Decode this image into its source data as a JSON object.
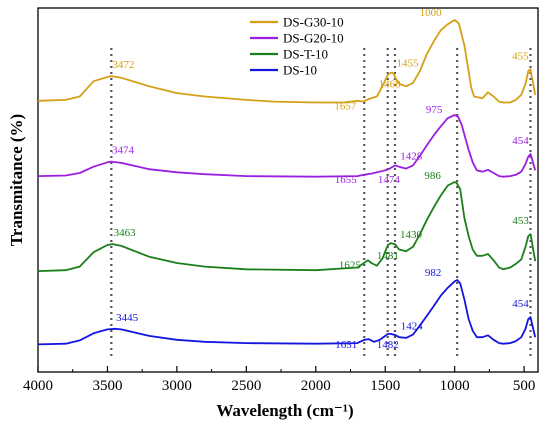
{
  "chart_data": {
    "type": "line",
    "title": "",
    "xlabel": "Wavelength (cm⁻¹)",
    "ylabel": "Transmitance (%)",
    "xlim": [
      4000,
      400
    ],
    "x_reversed": true,
    "x_ticks": [
      4000,
      3500,
      3000,
      2500,
      2000,
      1500,
      1000,
      500
    ],
    "y_ticks_shown": false,
    "legend": {
      "placement": "top-center"
    },
    "series": [
      {
        "name": "DS-G30-10",
        "color": "#d4a017",
        "points": [
          [
            4000,
            5
          ],
          [
            3800,
            6
          ],
          [
            3700,
            10
          ],
          [
            3600,
            28
          ],
          [
            3500,
            33
          ],
          [
            3472,
            34
          ],
          [
            3400,
            32
          ],
          [
            3300,
            27
          ],
          [
            3200,
            22
          ],
          [
            3000,
            14
          ],
          [
            2800,
            10
          ],
          [
            2500,
            6
          ],
          [
            2300,
            4
          ],
          [
            2000,
            3
          ],
          [
            1800,
            3
          ],
          [
            1700,
            5
          ],
          [
            1657,
            4
          ],
          [
            1620,
            7
          ],
          [
            1560,
            10
          ],
          [
            1520,
            22
          ],
          [
            1480,
            36
          ],
          [
            1455,
            38
          ],
          [
            1440,
            37
          ],
          [
            1420,
            30
          ],
          [
            1400,
            25
          ],
          [
            1350,
            22
          ],
          [
            1300,
            26
          ],
          [
            1250,
            40
          ],
          [
            1200,
            60
          ],
          [
            1150,
            75
          ],
          [
            1100,
            88
          ],
          [
            1050,
            95
          ],
          [
            1020,
            98
          ],
          [
            1000,
            100
          ],
          [
            970,
            96
          ],
          [
            930,
            70
          ],
          [
            900,
            40
          ],
          [
            880,
            20
          ],
          [
            860,
            10
          ],
          [
            800,
            8
          ],
          [
            760,
            15
          ],
          [
            720,
            10
          ],
          [
            680,
            4
          ],
          [
            650,
            3
          ],
          [
            600,
            3
          ],
          [
            560,
            6
          ],
          [
            520,
            12
          ],
          [
            490,
            25
          ],
          [
            470,
            40
          ],
          [
            455,
            42
          ],
          [
            440,
            30
          ],
          [
            420,
            12
          ]
        ],
        "peak_labels": [
          {
            "x": 3472,
            "label": "3472"
          },
          {
            "x": 1657,
            "label": "1657"
          },
          {
            "x": 1468,
            "label": "1468"
          },
          {
            "x": 1455,
            "label": "1455"
          },
          {
            "x": 1000,
            "label": "1000"
          },
          {
            "x": 455,
            "label": "455"
          }
        ]
      },
      {
        "name": "DS-G20-10",
        "color": "#9b1fe0",
        "points": [
          [
            4000,
            3
          ],
          [
            3800,
            4
          ],
          [
            3700,
            8
          ],
          [
            3600,
            18
          ],
          [
            3500,
            25
          ],
          [
            3474,
            26
          ],
          [
            3400,
            24
          ],
          [
            3300,
            19
          ],
          [
            3200,
            14
          ],
          [
            3000,
            9
          ],
          [
            2800,
            6
          ],
          [
            2500,
            3
          ],
          [
            2000,
            2
          ],
          [
            1700,
            3
          ],
          [
            1655,
            5
          ],
          [
            1600,
            7
          ],
          [
            1500,
            12
          ],
          [
            1474,
            14
          ],
          [
            1460,
            16
          ],
          [
            1428,
            20
          ],
          [
            1400,
            18
          ],
          [
            1350,
            15
          ],
          [
            1300,
            20
          ],
          [
            1250,
            35
          ],
          [
            1200,
            52
          ],
          [
            1150,
            68
          ],
          [
            1100,
            82
          ],
          [
            1050,
            95
          ],
          [
            1000,
            100
          ],
          [
            975,
            97
          ],
          [
            950,
            85
          ],
          [
            900,
            45
          ],
          [
            870,
            25
          ],
          [
            840,
            12
          ],
          [
            800,
            10
          ],
          [
            760,
            13
          ],
          [
            720,
            8
          ],
          [
            680,
            3
          ],
          [
            650,
            2
          ],
          [
            600,
            3
          ],
          [
            560,
            5
          ],
          [
            520,
            10
          ],
          [
            490,
            22
          ],
          [
            470,
            34
          ],
          [
            454,
            38
          ],
          [
            440,
            28
          ],
          [
            420,
            12
          ]
        ],
        "peak_labels": [
          {
            "x": 3474,
            "label": "3474"
          },
          {
            "x": 1655,
            "label": "1655"
          },
          {
            "x": 1474,
            "label": "1474"
          },
          {
            "x": 1428,
            "label": "1428"
          },
          {
            "x": 975,
            "label": "975"
          },
          {
            "x": 454,
            "label": "454"
          }
        ]
      },
      {
        "name": "DS-T-10",
        "color": "#1a7f1a",
        "points": [
          [
            4000,
            1
          ],
          [
            3800,
            2
          ],
          [
            3700,
            6
          ],
          [
            3600,
            22
          ],
          [
            3500,
            30
          ],
          [
            3463,
            31
          ],
          [
            3400,
            29
          ],
          [
            3300,
            23
          ],
          [
            3200,
            17
          ],
          [
            3000,
            10
          ],
          [
            2800,
            6
          ],
          [
            2500,
            3
          ],
          [
            2000,
            2
          ],
          [
            1700,
            5
          ],
          [
            1625,
            13
          ],
          [
            1600,
            10
          ],
          [
            1560,
            7
          ],
          [
            1520,
            15
          ],
          [
            1481,
            30
          ],
          [
            1460,
            32
          ],
          [
            1430,
            31
          ],
          [
            1400,
            25
          ],
          [
            1350,
            23
          ],
          [
            1300,
            28
          ],
          [
            1250,
            42
          ],
          [
            1200,
            58
          ],
          [
            1150,
            72
          ],
          [
            1100,
            85
          ],
          [
            1050,
            96
          ],
          [
            1000,
            100
          ],
          [
            986,
            99
          ],
          [
            960,
            92
          ],
          [
            930,
            60
          ],
          [
            900,
            40
          ],
          [
            870,
            25
          ],
          [
            840,
            18
          ],
          [
            800,
            18
          ],
          [
            760,
            20
          ],
          [
            720,
            13
          ],
          [
            680,
            5
          ],
          [
            650,
            3
          ],
          [
            600,
            5
          ],
          [
            560,
            9
          ],
          [
            520,
            14
          ],
          [
            490,
            28
          ],
          [
            470,
            40
          ],
          [
            453,
            42
          ],
          [
            440,
            30
          ],
          [
            420,
            12
          ]
        ],
        "peak_labels": [
          {
            "x": 3463,
            "label": "3463"
          },
          {
            "x": 1625,
            "label": "1625"
          },
          {
            "x": 1481,
            "label": "1481"
          },
          {
            "x": 1430,
            "label": "1430"
          },
          {
            "x": 986,
            "label": "986"
          },
          {
            "x": 453,
            "label": "453"
          }
        ]
      },
      {
        "name": "DS-10",
        "color": "#1515e0",
        "points": [
          [
            4000,
            1
          ],
          [
            3800,
            2
          ],
          [
            3700,
            7
          ],
          [
            3600,
            18
          ],
          [
            3500,
            24
          ],
          [
            3445,
            25
          ],
          [
            3400,
            24
          ],
          [
            3300,
            19
          ],
          [
            3200,
            14
          ],
          [
            3000,
            8
          ],
          [
            2800,
            5
          ],
          [
            2500,
            3
          ],
          [
            2000,
            2
          ],
          [
            1700,
            3
          ],
          [
            1651,
            8
          ],
          [
            1620,
            9
          ],
          [
            1580,
            5
          ],
          [
            1540,
            8
          ],
          [
            1500,
            14
          ],
          [
            1482,
            17
          ],
          [
            1460,
            17
          ],
          [
            1424,
            15
          ],
          [
            1400,
            12
          ],
          [
            1350,
            11
          ],
          [
            1300,
            16
          ],
          [
            1250,
            30
          ],
          [
            1200,
            45
          ],
          [
            1150,
            60
          ],
          [
            1100,
            76
          ],
          [
            1050,
            88
          ],
          [
            1000,
            98
          ],
          [
            982,
            100
          ],
          [
            960,
            95
          ],
          [
            930,
            70
          ],
          [
            900,
            40
          ],
          [
            870,
            22
          ],
          [
            840,
            12
          ],
          [
            800,
            12
          ],
          [
            760,
            15
          ],
          [
            720,
            8
          ],
          [
            680,
            3
          ],
          [
            650,
            2
          ],
          [
            600,
            3
          ],
          [
            560,
            6
          ],
          [
            520,
            12
          ],
          [
            490,
            25
          ],
          [
            470,
            40
          ],
          [
            454,
            43
          ],
          [
            440,
            30
          ],
          [
            420,
            12
          ]
        ],
        "peak_labels": [
          {
            "x": 3445,
            "label": "3445"
          },
          {
            "x": 1651,
            "label": "1651"
          },
          {
            "x": 1482,
            "label": "1482"
          },
          {
            "x": 1424,
            "label": "1424"
          },
          {
            "x": 982,
            "label": "982"
          },
          {
            "x": 454,
            "label": "454"
          }
        ]
      }
    ],
    "reference_lines_x": [
      3472,
      1651,
      1482,
      1430,
      982,
      454
    ]
  }
}
